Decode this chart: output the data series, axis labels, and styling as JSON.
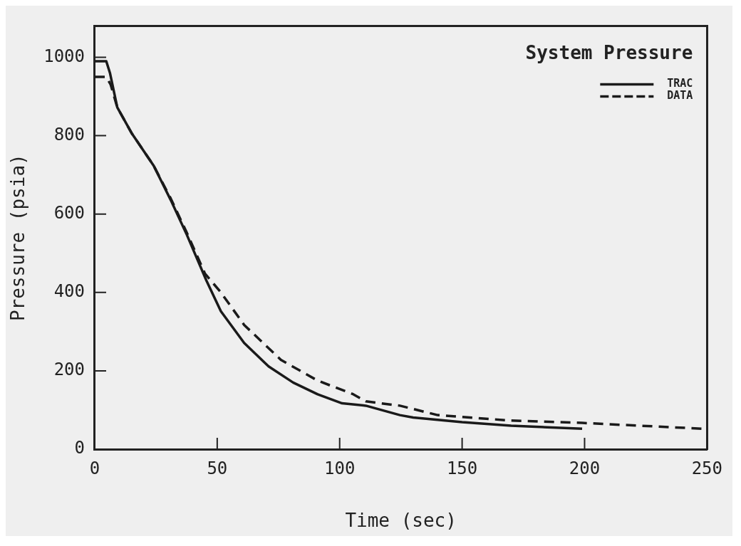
{
  "chart_data": {
    "type": "line",
    "title": "System Pressure",
    "xlabel": "Time (sec)",
    "ylabel": "Pressure (psia)",
    "xlim": [
      0,
      250
    ],
    "xticks": [
      0,
      50,
      100,
      150,
      200,
      250
    ],
    "ylim": [
      0,
      1080
    ],
    "yticks": [
      0,
      200,
      400,
      600,
      800,
      {
        "value": 1000,
        "label": "1000"
      }
    ],
    "grid": false,
    "legend": "top right",
    "marker": "none",
    "series": [
      {
        "name": "TRAC",
        "color": "#1a1a1a",
        "line_style": "solid",
        "x": [
          0,
          4.7,
          6.2,
          9.2,
          15,
          24,
          31,
          37.6,
          45.6,
          51.5,
          61,
          71,
          81,
          91,
          101,
          110.7,
          124.6,
          130,
          150,
          170,
          199
        ],
        "values": [
          990,
          990,
          960,
          872,
          807,
          724,
          636,
          547,
          430,
          352,
          271,
          211,
          170,
          140,
          117,
          111,
          87,
          81,
          69,
          60,
          52
        ]
      },
      {
        "name": "DATA",
        "color": "#1a1a1a",
        "line_style": "dashed",
        "x": [
          0,
          4.7,
          6.5,
          9.2,
          15,
          24,
          31,
          37.6,
          45,
          51.5,
          61,
          76,
          91,
          105.6,
          110.7,
          124.6,
          140,
          170,
          199,
          229,
          249
        ],
        "values": [
          950,
          950,
          930,
          872,
          807,
          724,
          640,
          552,
          448,
          400,
          317,
          228,
          175,
          140,
          122,
          111,
          87,
          73,
          67,
          58,
          52
        ]
      }
    ]
  }
}
